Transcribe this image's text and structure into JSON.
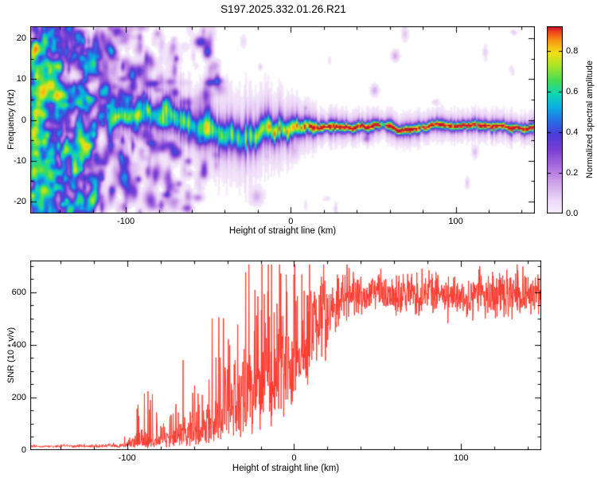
{
  "figure": {
    "title": "S197.2025.332.01.26.R21"
  },
  "chart_data": [
    {
      "type": "heatmap",
      "name": "spectrogram",
      "title": "S197.2025.332.01.26.R21",
      "xlabel": "Height of straight line (km)",
      "ylabel": "Frequency (Hz)",
      "xlim": [
        -158,
        148
      ],
      "ylim": [
        -23,
        23
      ],
      "xticks": [
        -100,
        0,
        100
      ],
      "xtick_labels": [
        "-100",
        "0",
        "100"
      ],
      "yticks": [
        -20,
        -10,
        0,
        10,
        20
      ],
      "ytick_labels": [
        "-20",
        "-10",
        "0",
        "10",
        "20"
      ],
      "x_minor_step": 20,
      "y_minor_step": 5,
      "grid": false,
      "colorbar": {
        "label": "Normalized spectral amplitude",
        "range": [
          0,
          0.92
        ],
        "ticks": [
          0.0,
          0.2,
          0.4,
          0.6,
          0.8
        ],
        "tick_labels": [
          "0.0",
          "0.2",
          "0.4",
          "0.6",
          "0.8"
        ]
      },
      "colormap_stops": [
        [
          0.0,
          "#f8effc"
        ],
        [
          0.07,
          "#ecd7f7"
        ],
        [
          0.16,
          "#cfa3ea"
        ],
        [
          0.26,
          "#a468dd"
        ],
        [
          0.34,
          "#7a3fd4"
        ],
        [
          0.42,
          "#4b3bd8"
        ],
        [
          0.5,
          "#2573e6"
        ],
        [
          0.57,
          "#0ab0e0"
        ],
        [
          0.64,
          "#0fd6b4"
        ],
        [
          0.71,
          "#43dc55"
        ],
        [
          0.79,
          "#a9e427"
        ],
        [
          0.86,
          "#f2df17"
        ],
        [
          0.92,
          "#f89e12"
        ],
        [
          0.97,
          "#ef4619"
        ],
        [
          1.0,
          "#c90f30"
        ]
      ],
      "background": "#ffffff",
      "description": "Diffuse low-amplitude purple noise speckle fills the left side (densest below -120 km, fading toward -50 km). A coherent meteor-echo trace appears near +1 Hz at about -115 km, wanders between +2 and -5 Hz through -60..-10 km, then becomes a narrow high-amplitude line (red core ~0.9) near -1.5 Hz from ~+10 km to the right edge.",
      "trail": {
        "start_x": -117,
        "center_keypoints": [
          [
            -117,
            1.2
          ],
          [
            -108,
            0.6
          ],
          [
            -100,
            1.8
          ],
          [
            -93,
            0.8
          ],
          [
            -87,
            2.0
          ],
          [
            -80,
            0.8
          ],
          [
            -74,
            1.6
          ],
          [
            -68,
            0.2
          ],
          [
            -62,
            -0.6
          ],
          [
            -56,
            -1.8
          ],
          [
            -50,
            -1.2
          ],
          [
            -45,
            -2.8
          ],
          [
            -40,
            -4.2
          ],
          [
            -35,
            -3.2
          ],
          [
            -30,
            -4.8
          ],
          [
            -26,
            -3.6
          ],
          [
            -22,
            -4.6
          ],
          [
            -18,
            -2.2
          ],
          [
            -14,
            -1.0
          ],
          [
            -10,
            -2.6
          ],
          [
            -6,
            -0.6
          ],
          [
            -2,
            -2.4
          ],
          [
            2,
            -1.0
          ],
          [
            6,
            -1.8
          ],
          [
            12,
            -1.4
          ],
          [
            30,
            -1.6
          ],
          [
            60,
            -1.4
          ],
          [
            80,
            -2.2
          ],
          [
            86,
            -1.2
          ],
          [
            110,
            -1.5
          ],
          [
            148,
            -1.5
          ]
        ],
        "amp_keypoints": [
          [
            -117,
            0.45
          ],
          [
            -100,
            0.55
          ],
          [
            -80,
            0.58
          ],
          [
            -60,
            0.58
          ],
          [
            -40,
            0.6
          ],
          [
            -25,
            0.62
          ],
          [
            -15,
            0.68
          ],
          [
            -5,
            0.74
          ],
          [
            3,
            0.78
          ],
          [
            10,
            0.78
          ],
          [
            20,
            0.8
          ],
          [
            148,
            0.8
          ]
        ],
        "width_hz_keypoints": [
          [
            -117,
            1.5
          ],
          [
            -90,
            1.7
          ],
          [
            -60,
            2.0
          ],
          [
            -40,
            2.3
          ],
          [
            -25,
            2.3
          ],
          [
            -12,
            1.9
          ],
          [
            0,
            1.5
          ],
          [
            8,
            1.2
          ],
          [
            16,
            0.9
          ],
          [
            30,
            0.75
          ],
          [
            148,
            0.7
          ]
        ],
        "red_core": {
          "start_x": 8,
          "amplitude": 0.92,
          "sigma_hz": 0.33
        }
      },
      "noise": {
        "left_edge_blobs": 1150,
        "exp_scale_km": 42,
        "sparse_blobs": 26,
        "amp_range": [
          0.04,
          0.45
        ],
        "seed": 1234
      }
    },
    {
      "type": "line",
      "name": "snr",
      "xlabel": "Height of straight line (km)",
      "ylabel": "SNR (10 * v/v)",
      "xlim": [
        -158,
        148
      ],
      "ylim": [
        0,
        720
      ],
      "xticks": [
        -100,
        0,
        100
      ],
      "xtick_labels": [
        "-100",
        "0",
        "100"
      ],
      "yticks": [
        0,
        200,
        400,
        600
      ],
      "ytick_labels": [
        "0",
        "200",
        "400",
        "600"
      ],
      "x_minor_step": 20,
      "y_minor_step": 50,
      "grid": false,
      "line_color": "#fb3b30",
      "samples": 1600,
      "seed": 777,
      "description": "SNR is flat near ~15 below -110 km, rises with sparse tall spikes between -95 and -45 km (one spike near -55 km reaches ~480), becomes highly variable (60-600) between -40 and +20 km, then plateaus around ~590 with +/-15% noise from +30 km to the right edge.",
      "envelope_keypoints": [
        [
          -158,
          14,
          0.25
        ],
        [
          -120,
          15,
          0.3
        ],
        [
          -105,
          18,
          0.45
        ],
        [
          -95,
          26,
          0.7
        ],
        [
          -88,
          32,
          0.85
        ],
        [
          -80,
          38,
          0.9
        ],
        [
          -72,
          48,
          1.0
        ],
        [
          -64,
          62,
          1.05
        ],
        [
          -56,
          78,
          1.05
        ],
        [
          -50,
          100,
          1.0
        ],
        [
          -44,
          130,
          0.95
        ],
        [
          -38,
          165,
          0.9
        ],
        [
          -32,
          200,
          0.85
        ],
        [
          -26,
          235,
          0.85
        ],
        [
          -20,
          265,
          0.8
        ],
        [
          -14,
          295,
          0.75
        ],
        [
          -8,
          330,
          0.7
        ],
        [
          -2,
          365,
          0.62
        ],
        [
          4,
          405,
          0.52
        ],
        [
          10,
          450,
          0.42
        ],
        [
          16,
          500,
          0.32
        ],
        [
          22,
          545,
          0.22
        ],
        [
          28,
          572,
          0.15
        ],
        [
          40,
          585,
          0.12
        ],
        [
          70,
          592,
          0.115
        ],
        [
          100,
          590,
          0.115
        ],
        [
          130,
          588,
          0.12
        ],
        [
          148,
          585,
          0.13
        ]
      ],
      "spikes": {
        "x_range": [
          -98,
          -42
        ],
        "prob": 0.03,
        "mult_range": [
          2.5,
          7.5
        ],
        "max": 500
      }
    }
  ]
}
